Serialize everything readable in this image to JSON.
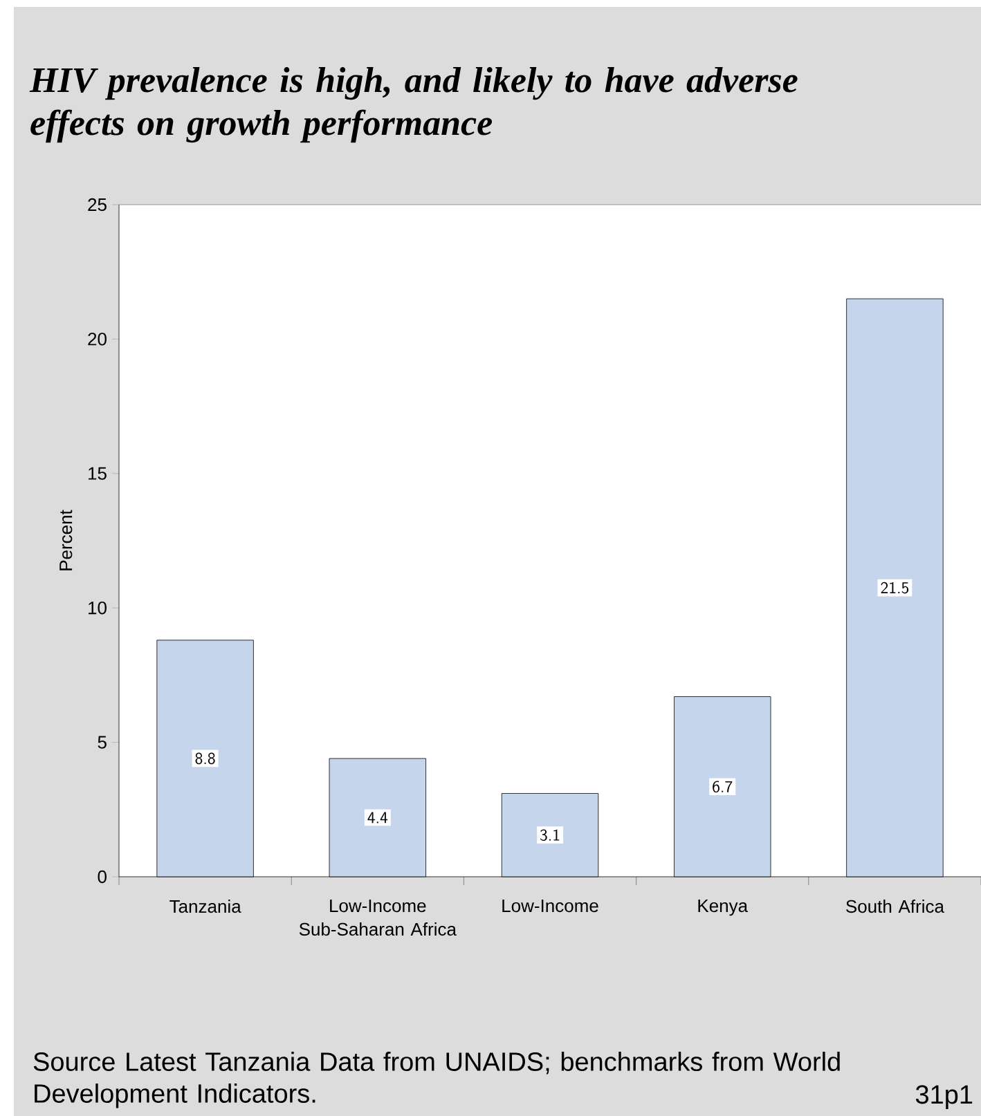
{
  "chart_data": {
    "type": "bar",
    "title": "HIV prevalence is high, and likely to have adverse effects on growth performance",
    "ylabel": "Percent",
    "categories": [
      "Tanzania",
      "Low-Income Sub-Saharan Africa",
      "Low-Income",
      "Kenya",
      "South Africa"
    ],
    "values": [
      8.8,
      4.4,
      3.1,
      6.7,
      21.5
    ],
    "color": "#c5d5ec",
    "ylim": [
      0,
      25
    ],
    "yticks": [
      0,
      5,
      10,
      15,
      20,
      25
    ],
    "data_labels": true,
    "grid": false,
    "annotations": [
      "Source Latest Tanzania Data from UNAIDS; benchmarks from World Development Indicators.",
      "31p1"
    ]
  }
}
